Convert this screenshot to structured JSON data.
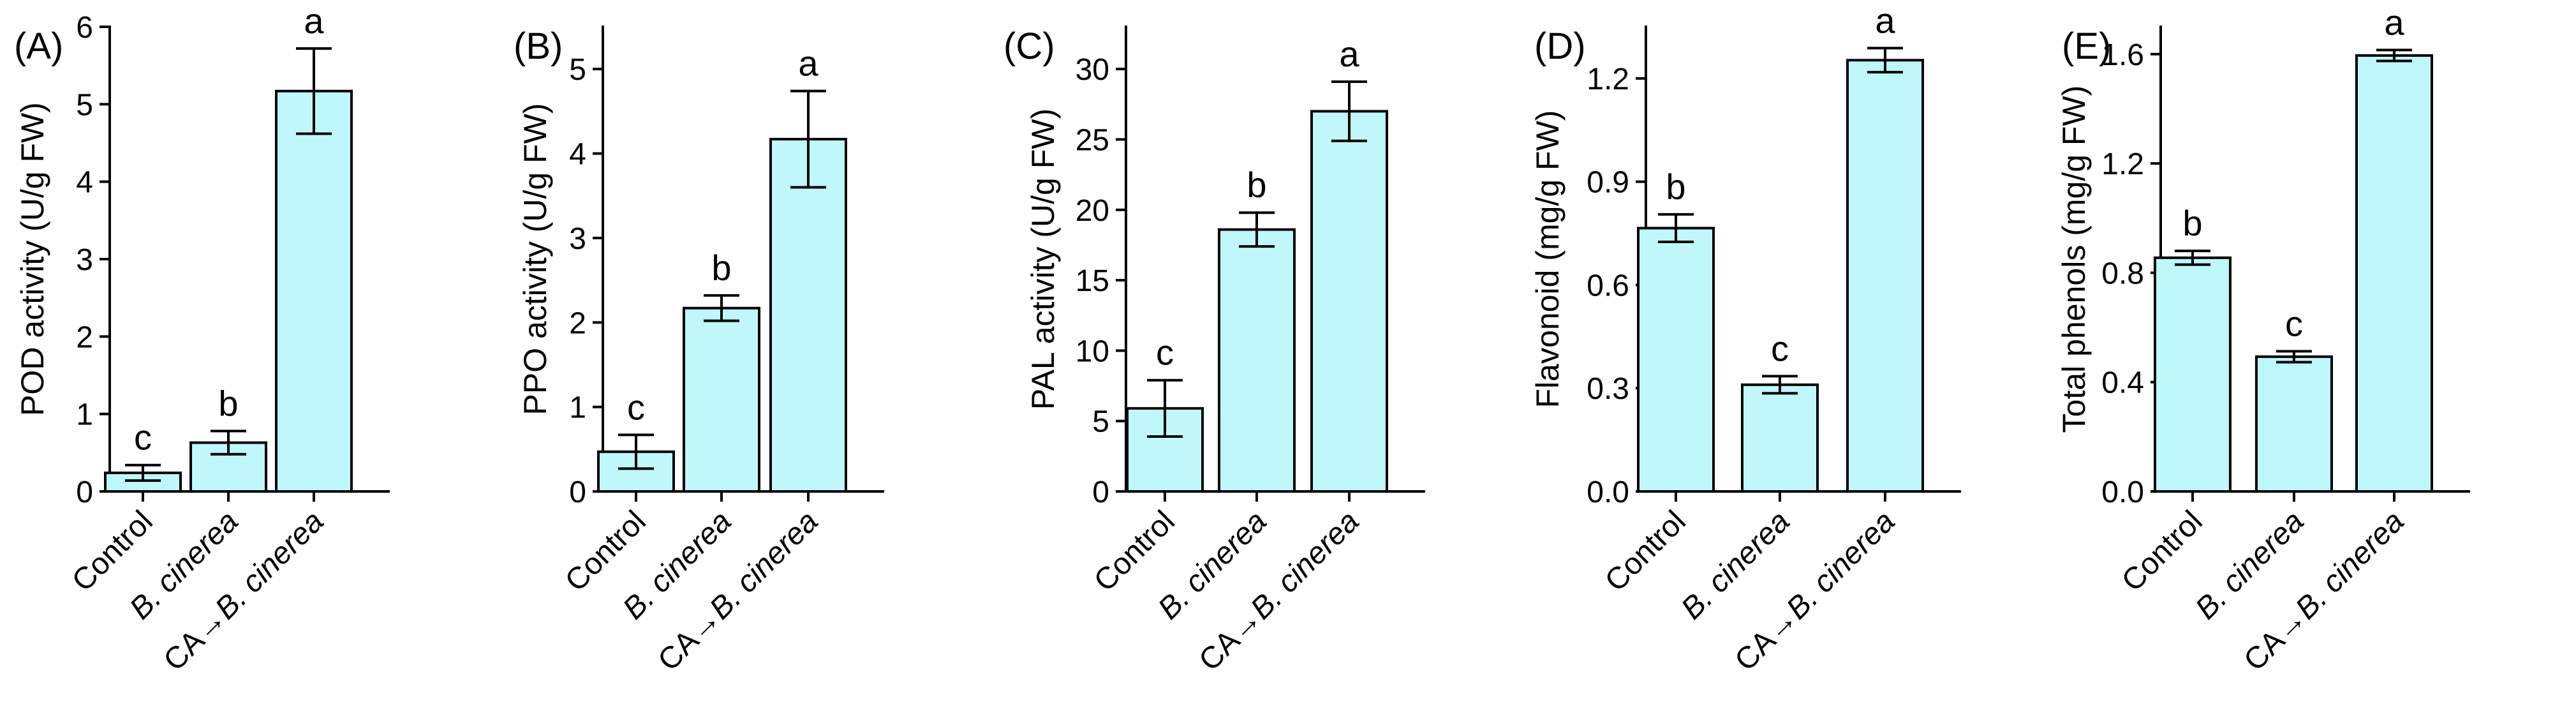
{
  "colors": {
    "bar_fill": "#bff7fa",
    "stroke": "#000000"
  },
  "chart_data": [
    {
      "type": "bar",
      "panel_label": "(A)",
      "ylabel": "POD activity (U/g FW)",
      "categories": [
        "Control",
        "B. cinerea",
        "CA→B. cinerea"
      ],
      "values": [
        0.24,
        0.63,
        5.17
      ],
      "errors": [
        0.1,
        0.15,
        0.55
      ],
      "letters": [
        "c",
        "b",
        "a"
      ],
      "ylim": [
        0,
        6
      ],
      "yticks": [
        0,
        1,
        2,
        3,
        4,
        5,
        6
      ],
      "ytick_labels": [
        "0",
        "1",
        "2",
        "3",
        "4",
        "5",
        "6"
      ]
    },
    {
      "type": "bar",
      "panel_label": "(B)",
      "ylabel": "PPO activity (U/g FW)",
      "categories": [
        "Control",
        "B. cinerea",
        "CA→B. cinerea"
      ],
      "values": [
        0.47,
        2.17,
        4.17
      ],
      "errors": [
        0.2,
        0.15,
        0.57
      ],
      "letters": [
        "c",
        "b",
        "a"
      ],
      "ylim": [
        0,
        5.5
      ],
      "yticks": [
        0,
        1,
        2,
        3,
        4,
        5
      ],
      "ytick_labels": [
        "0",
        "1",
        "2",
        "3",
        "4",
        "5"
      ]
    },
    {
      "type": "bar",
      "panel_label": "(C)",
      "ylabel": "PAL activity (U/g FW)",
      "categories": [
        "Control",
        "B. cinerea",
        "CA→B. cinerea"
      ],
      "values": [
        5.9,
        18.6,
        27.0
      ],
      "errors": [
        2.0,
        1.2,
        2.1
      ],
      "letters": [
        "c",
        "b",
        "a"
      ],
      "ylim": [
        0,
        33
      ],
      "yticks": [
        0,
        5,
        10,
        15,
        20,
        25,
        30
      ],
      "ytick_labels": [
        "0",
        "5",
        "10",
        "15",
        "20",
        "25",
        "30"
      ]
    },
    {
      "type": "bar",
      "panel_label": "(D)",
      "ylabel": "Flavonoid (mg/g FW)",
      "categories": [
        "Control",
        "B. cinerea",
        "CA→B. cinerea"
      ],
      "values": [
        0.765,
        0.31,
        1.253
      ],
      "errors": [
        0.04,
        0.025,
        0.035
      ],
      "letters": [
        "b",
        "c",
        "a"
      ],
      "ylim": [
        0,
        1.35
      ],
      "yticks": [
        0,
        0.3,
        0.6,
        0.9,
        1.2
      ],
      "ytick_labels": [
        "0.0",
        "0.3",
        "0.6",
        "0.9",
        "1.2"
      ]
    },
    {
      "type": "bar",
      "panel_label": "(E)",
      "ylabel": "Total phenols (mg/g FW)",
      "categories": [
        "Control",
        "B. cinerea",
        "CA→B. cinerea"
      ],
      "values": [
        0.855,
        0.493,
        1.595
      ],
      "errors": [
        0.025,
        0.02,
        0.02
      ],
      "letters": [
        "b",
        "c",
        "a"
      ],
      "ylim": [
        0,
        1.7
      ],
      "yticks": [
        0,
        0.4,
        0.8,
        1.2,
        1.6
      ],
      "ytick_labels": [
        "0.0",
        "0.4",
        "0.8",
        "1.2",
        "1.6"
      ]
    }
  ]
}
